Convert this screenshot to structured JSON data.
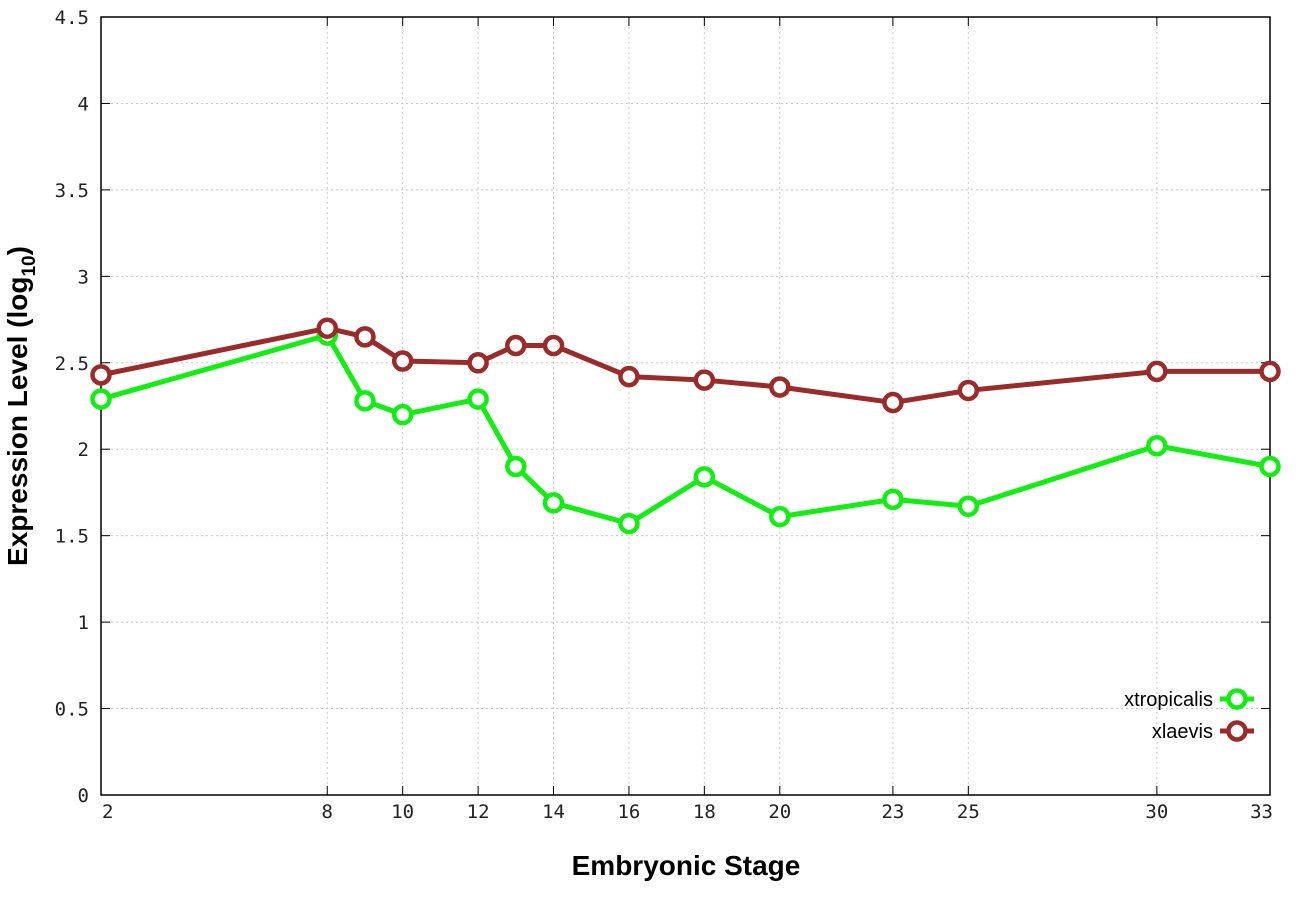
{
  "chart_data": {
    "type": "line",
    "title": "",
    "xlabel": "Embryonic Stage",
    "ylabel_main": "Expression Level (log",
    "ylabel_sub": "10",
    "ylabel_close": ")",
    "x_tick_labels": [
      "2",
      "8",
      "10",
      "12",
      "14",
      "16",
      "18",
      "20",
      "23",
      "25",
      "30",
      "33"
    ],
    "y_tick_labels": [
      "0",
      "0.5",
      "1",
      "1.5",
      "2",
      "2.5",
      "3",
      "3.5",
      "4",
      "4.5"
    ],
    "ylim": [
      0,
      4.5
    ],
    "grid": true,
    "legend_position": "bottom-right",
    "series": [
      {
        "name": "xtropicalis",
        "color": "#11ee11",
        "x": [
          "2",
          "8",
          "9",
          "10",
          "12",
          "13",
          "14",
          "16",
          "18",
          "20",
          "23",
          "25",
          "30",
          "33"
        ],
        "values": [
          2.29,
          2.66,
          2.28,
          2.2,
          2.29,
          1.9,
          1.69,
          1.57,
          1.84,
          1.61,
          1.71,
          1.67,
          2.02,
          1.9
        ]
      },
      {
        "name": "xlaevis",
        "color": "#9b2a2a",
        "x": [
          "2",
          "8",
          "9",
          "10",
          "12",
          "13",
          "14",
          "16",
          "18",
          "20",
          "23",
          "25",
          "30",
          "33"
        ],
        "values": [
          2.43,
          2.7,
          2.65,
          2.51,
          2.5,
          2.6,
          2.6,
          2.42,
          2.4,
          2.36,
          2.27,
          2.34,
          2.45,
          2.45
        ]
      }
    ]
  }
}
